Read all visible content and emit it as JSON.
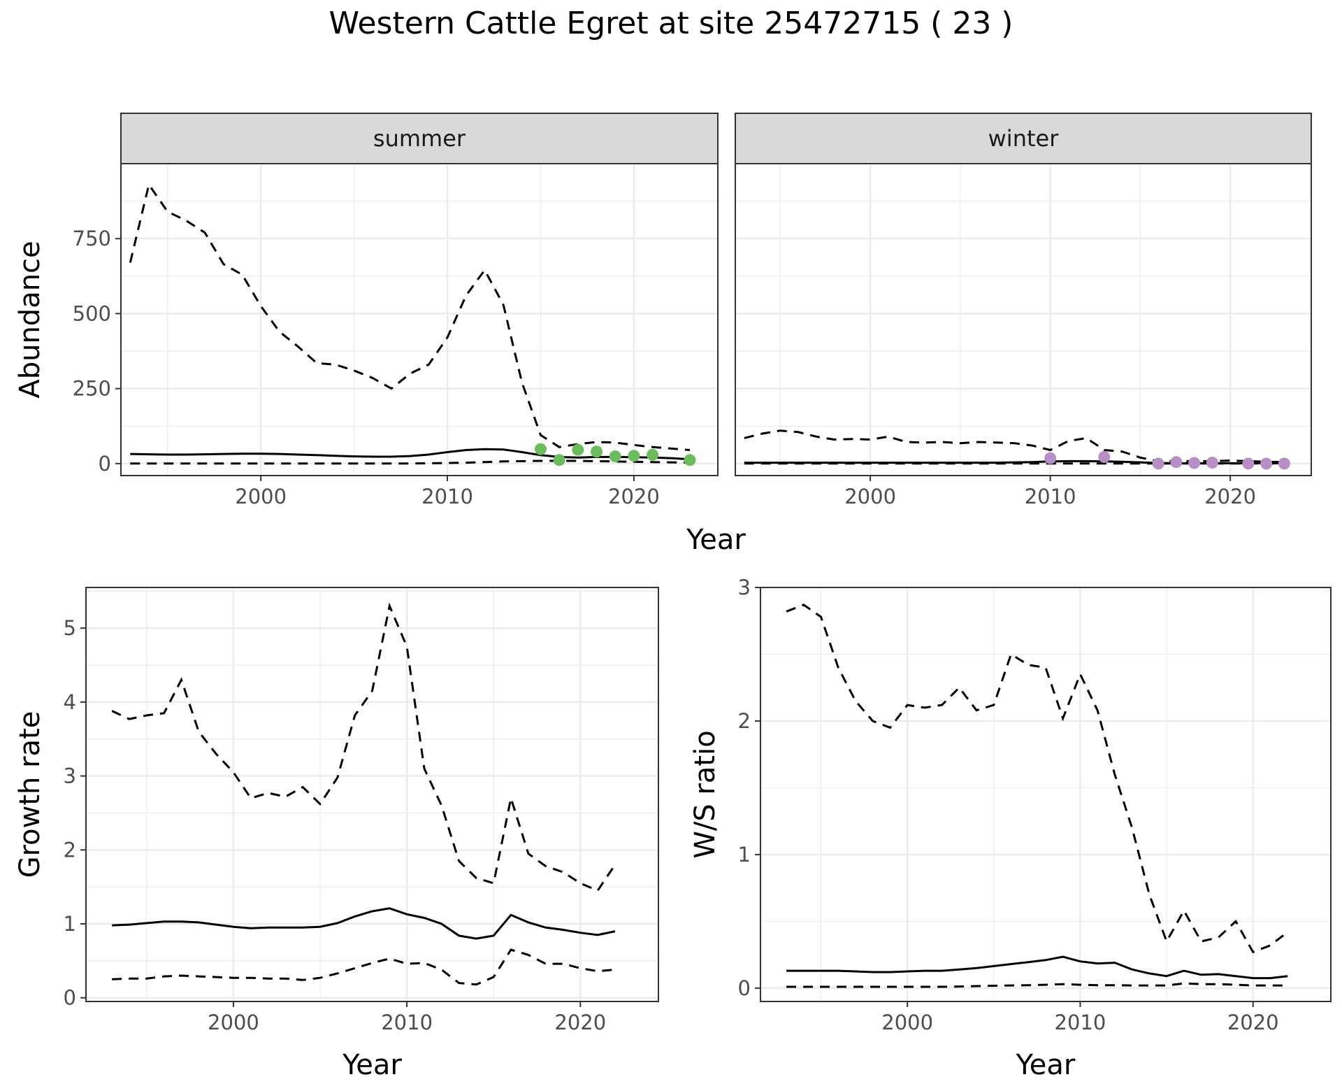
{
  "title": "Western Cattle Egret at site 25472715 ( 23 )",
  "colors": {
    "summer_points": "#6abd5b",
    "winter_points": "#b88ec6",
    "line": "#000000",
    "strip": "#d9d9d9"
  },
  "chart_data": [
    {
      "type": "line",
      "panel": "summer",
      "strip_label": "summer",
      "xlabel": "Year",
      "ylabel": "Abundance",
      "xlim": [
        1992.5,
        2024.5
      ],
      "ylim": [
        -40,
        1000
      ],
      "x_ticks": [
        2000,
        2010,
        2020
      ],
      "y_ticks": [
        0,
        250,
        500,
        750
      ],
      "series": [
        {
          "role": "mean",
          "style": "solid",
          "x": [
            1993,
            1994,
            1995,
            1996,
            1997,
            1998,
            1999,
            2000,
            2001,
            2002,
            2003,
            2004,
            2005,
            2006,
            2007,
            2008,
            2009,
            2010,
            2011,
            2012,
            2013,
            2014,
            2015,
            2016,
            2017,
            2018,
            2019,
            2020,
            2021,
            2022,
            2023
          ],
          "y": [
            32,
            31,
            30,
            30,
            31,
            32,
            33,
            33,
            32,
            30,
            28,
            26,
            24,
            23,
            23,
            25,
            30,
            38,
            45,
            48,
            47,
            38,
            28,
            22,
            20,
            22,
            22,
            21,
            20,
            18,
            14
          ]
        },
        {
          "role": "upper",
          "style": "dashed",
          "x": [
            1993,
            1994,
            1995,
            1996,
            1997,
            1998,
            1999,
            2000,
            2001,
            2002,
            2003,
            2004,
            2005,
            2006,
            2007,
            2008,
            2009,
            2010,
            2011,
            2012,
            2013,
            2014,
            2015,
            2016,
            2017,
            2018,
            2019,
            2020,
            2021,
            2022,
            2023
          ],
          "y": [
            670,
            930,
            840,
            810,
            770,
            665,
            630,
            525,
            440,
            390,
            335,
            330,
            310,
            285,
            250,
            300,
            330,
            420,
            560,
            645,
            530,
            270,
            95,
            55,
            65,
            72,
            70,
            62,
            55,
            50,
            45
          ]
        },
        {
          "role": "lower",
          "style": "dashed",
          "x": [
            1993,
            1994,
            1995,
            1996,
            1997,
            1998,
            1999,
            2000,
            2001,
            2002,
            2003,
            2004,
            2005,
            2006,
            2007,
            2008,
            2009,
            2010,
            2011,
            2012,
            2013,
            2014,
            2015,
            2016,
            2017,
            2018,
            2019,
            2020,
            2021,
            2022,
            2023
          ],
          "y": [
            0,
            0,
            0,
            0,
            0,
            0,
            0,
            0,
            0,
            0,
            0,
            0,
            0,
            0,
            0,
            0,
            1,
            2,
            3,
            5,
            7,
            8,
            9,
            9,
            9,
            8,
            7,
            6,
            5,
            4,
            3
          ]
        }
      ],
      "points": {
        "x": [
          2015,
          2016,
          2017,
          2018,
          2019,
          2020,
          2021,
          2023
        ],
        "y": [
          48,
          12,
          46,
          40,
          24,
          26,
          29,
          12
        ]
      }
    },
    {
      "type": "line",
      "panel": "winter",
      "strip_label": "winter",
      "xlabel": "Year",
      "ylabel": "Abundance",
      "xlim": [
        1992.5,
        2024.5
      ],
      "ylim": [
        -40,
        1000
      ],
      "x_ticks": [
        2000,
        2010,
        2020
      ],
      "y_ticks": [
        0,
        250,
        500,
        750
      ],
      "series": [
        {
          "role": "mean",
          "style": "solid",
          "x": [
            1993,
            1994,
            1995,
            1996,
            1997,
            1998,
            1999,
            2000,
            2001,
            2002,
            2003,
            2004,
            2005,
            2006,
            2007,
            2008,
            2009,
            2010,
            2011,
            2012,
            2013,
            2014,
            2015,
            2016,
            2017,
            2018,
            2019,
            2020,
            2021,
            2022,
            2023
          ],
          "y": [
            3,
            3,
            3,
            3,
            3,
            3,
            3,
            3,
            3,
            3,
            3,
            3,
            3,
            3,
            3,
            4,
            5,
            7,
            8,
            8,
            7,
            6,
            4,
            2,
            1,
            1,
            1,
            1,
            1,
            1,
            1
          ]
        },
        {
          "role": "upper",
          "style": "dashed",
          "x": [
            1993,
            1994,
            1995,
            1996,
            1997,
            1998,
            1999,
            2000,
            2001,
            2002,
            2003,
            2004,
            2005,
            2006,
            2007,
            2008,
            2009,
            2010,
            2011,
            2012,
            2013,
            2014,
            2015,
            2016,
            2017,
            2018,
            2019,
            2020,
            2021,
            2022,
            2023
          ],
          "y": [
            85,
            100,
            110,
            105,
            90,
            80,
            82,
            80,
            90,
            72,
            70,
            72,
            68,
            72,
            70,
            68,
            60,
            45,
            75,
            85,
            45,
            40,
            20,
            8,
            8,
            8,
            8,
            10,
            8,
            6,
            5
          ]
        },
        {
          "role": "lower",
          "style": "dashed",
          "x": [
            1993,
            1994,
            1995,
            1996,
            1997,
            1998,
            1999,
            2000,
            2001,
            2002,
            2003,
            2004,
            2005,
            2006,
            2007,
            2008,
            2009,
            2010,
            2011,
            2012,
            2013,
            2014,
            2015,
            2016,
            2017,
            2018,
            2019,
            2020,
            2021,
            2022,
            2023
          ],
          "y": [
            0,
            0,
            0,
            0,
            0,
            0,
            0,
            0,
            0,
            0,
            0,
            0,
            0,
            0,
            0,
            0,
            0,
            0,
            0,
            0,
            0,
            0,
            0,
            0,
            0,
            0,
            0,
            0,
            0,
            0,
            0
          ]
        }
      ],
      "points": {
        "x": [
          2010,
          2013,
          2016,
          2017,
          2018,
          2019,
          2021,
          2022,
          2023
        ],
        "y": [
          18,
          22,
          0,
          5,
          2,
          3,
          0,
          0,
          0
        ]
      }
    },
    {
      "type": "line",
      "panel": "growth",
      "xlabel": "Year",
      "ylabel": "Growth rate",
      "xlim": [
        1991.5,
        2024.5
      ],
      "ylim": [
        -0.05,
        5.55
      ],
      "x_ticks": [
        2000,
        2010,
        2020
      ],
      "y_ticks": [
        0,
        1,
        2,
        3,
        4,
        5
      ],
      "series": [
        {
          "role": "mean",
          "style": "solid",
          "x": [
            1993,
            1994,
            1995,
            1996,
            1997,
            1998,
            1999,
            2000,
            2001,
            2002,
            2003,
            2004,
            2005,
            2006,
            2007,
            2008,
            2009,
            2010,
            2011,
            2012,
            2013,
            2014,
            2015,
            2016,
            2017,
            2018,
            2019,
            2020,
            2021,
            2022
          ],
          "y": [
            0.98,
            0.99,
            1.01,
            1.03,
            1.03,
            1.02,
            0.99,
            0.96,
            0.94,
            0.95,
            0.95,
            0.95,
            0.96,
            1.01,
            1.1,
            1.17,
            1.21,
            1.13,
            1.08,
            1.0,
            0.84,
            0.8,
            0.84,
            1.12,
            1.02,
            0.95,
            0.92,
            0.88,
            0.85,
            0.9
          ]
        },
        {
          "role": "upper",
          "style": "dashed",
          "x": [
            1993,
            1994,
            1995,
            1996,
            1997,
            1998,
            1999,
            2000,
            2001,
            2002,
            2003,
            2004,
            2005,
            2006,
            2007,
            2008,
            2009,
            2010,
            2011,
            2012,
            2013,
            2014,
            2015,
            2016,
            2017,
            2018,
            2019,
            2020,
            2021,
            2022
          ],
          "y": [
            3.88,
            3.77,
            3.82,
            3.85,
            4.3,
            3.6,
            3.3,
            3.05,
            2.7,
            2.77,
            2.72,
            2.85,
            2.62,
            2.98,
            3.82,
            4.15,
            5.3,
            4.75,
            3.1,
            2.6,
            1.85,
            1.62,
            1.55,
            2.7,
            1.95,
            1.78,
            1.7,
            1.55,
            1.45,
            1.8
          ]
        },
        {
          "role": "lower",
          "style": "dashed",
          "x": [
            1993,
            1994,
            1995,
            1996,
            1997,
            1998,
            1999,
            2000,
            2001,
            2002,
            2003,
            2004,
            2005,
            2006,
            2007,
            2008,
            2009,
            2010,
            2011,
            2012,
            2013,
            2014,
            2015,
            2016,
            2017,
            2018,
            2019,
            2020,
            2021,
            2022
          ],
          "y": [
            0.25,
            0.26,
            0.26,
            0.29,
            0.3,
            0.29,
            0.28,
            0.27,
            0.27,
            0.26,
            0.26,
            0.24,
            0.27,
            0.33,
            0.4,
            0.47,
            0.53,
            0.46,
            0.47,
            0.38,
            0.2,
            0.18,
            0.28,
            0.65,
            0.58,
            0.46,
            0.46,
            0.4,
            0.36,
            0.38
          ]
        }
      ]
    },
    {
      "type": "line",
      "panel": "ratio",
      "xlabel": "Year",
      "ylabel": "W/S ratio",
      "xlim": [
        1991.5,
        2024.5
      ],
      "ylim": [
        -0.1,
        3.0
      ],
      "x_ticks": [
        2000,
        2010,
        2020
      ],
      "y_ticks": [
        0,
        1,
        2,
        3
      ],
      "series": [
        {
          "role": "mean",
          "style": "solid",
          "x": [
            1993,
            1994,
            1995,
            1996,
            1997,
            1998,
            1999,
            2000,
            2001,
            2002,
            2003,
            2004,
            2005,
            2006,
            2007,
            2008,
            2009,
            2010,
            2011,
            2012,
            2013,
            2014,
            2015,
            2016,
            2017,
            2018,
            2019,
            2020,
            2021,
            2022
          ],
          "y": [
            0.13,
            0.13,
            0.13,
            0.13,
            0.125,
            0.12,
            0.12,
            0.125,
            0.13,
            0.13,
            0.14,
            0.15,
            0.165,
            0.18,
            0.195,
            0.21,
            0.235,
            0.2,
            0.185,
            0.19,
            0.14,
            0.11,
            0.09,
            0.13,
            0.1,
            0.105,
            0.09,
            0.075,
            0.075,
            0.09
          ]
        },
        {
          "role": "upper",
          "style": "dashed",
          "x": [
            1993,
            1994,
            1995,
            1996,
            1997,
            1998,
            1999,
            2000,
            2001,
            2002,
            2003,
            2004,
            2005,
            2006,
            2007,
            2008,
            2009,
            2010,
            2011,
            2012,
            2013,
            2014,
            2015,
            2016,
            2017,
            2018,
            2019,
            2020,
            2021,
            2022
          ],
          "y": [
            2.82,
            2.87,
            2.78,
            2.4,
            2.15,
            2.0,
            1.95,
            2.12,
            2.1,
            2.12,
            2.25,
            2.08,
            2.12,
            2.5,
            2.42,
            2.4,
            2.02,
            2.35,
            2.08,
            1.6,
            1.2,
            0.7,
            0.35,
            0.58,
            0.35,
            0.38,
            0.5,
            0.27,
            0.32,
            0.42
          ]
        },
        {
          "role": "lower",
          "style": "dashed",
          "x": [
            1993,
            1994,
            1995,
            1996,
            1997,
            1998,
            1999,
            2000,
            2001,
            2002,
            2003,
            2004,
            2005,
            2006,
            2007,
            2008,
            2009,
            2010,
            2011,
            2012,
            2013,
            2014,
            2015,
            2016,
            2017,
            2018,
            2019,
            2020,
            2021,
            2022
          ],
          "y": [
            0.01,
            0.01,
            0.01,
            0.01,
            0.01,
            0.01,
            0.01,
            0.01,
            0.01,
            0.01,
            0.012,
            0.015,
            0.018,
            0.02,
            0.022,
            0.025,
            0.03,
            0.025,
            0.022,
            0.022,
            0.02,
            0.02,
            0.02,
            0.035,
            0.03,
            0.03,
            0.025,
            0.02,
            0.02,
            0.02
          ]
        }
      ]
    }
  ]
}
